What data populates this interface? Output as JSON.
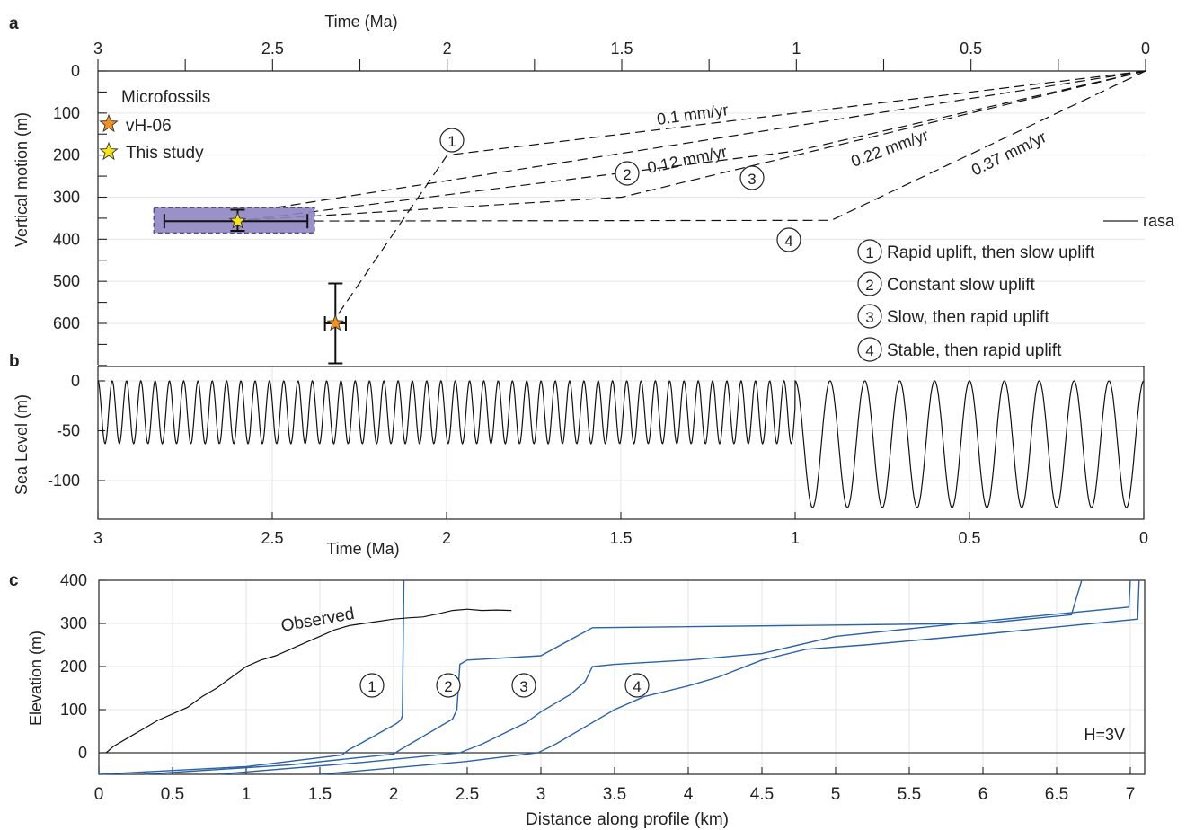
{
  "panels": {
    "a": {
      "label": "a",
      "xlabel": "Time (Ma)",
      "ylabel": "Vertical motion (m)",
      "xticks": [
        "3",
        "2.5",
        "2",
        "1.5",
        "1",
        "0.5",
        "0"
      ],
      "yticks": [
        "0",
        "100",
        "200",
        "300",
        "400",
        "500",
        "600"
      ],
      "legend_title": "Microfossils",
      "legend_items": [
        "vH-06",
        "This study"
      ],
      "rate_labels": [
        "0.1 mm/yr",
        "0.12 mm/yr",
        "0.22 mm/yr",
        "0.37 mm/yr"
      ],
      "rasa_label": "rasa",
      "scenarios": [
        {
          "num": "1",
          "text": "Rapid uplift, then slow uplift"
        },
        {
          "num": "2",
          "text": "Constant slow uplift"
        },
        {
          "num": "3",
          "text": "Slow, then rapid uplift"
        },
        {
          "num": "4",
          "text": "Stable, then rapid uplift"
        }
      ]
    },
    "b": {
      "label": "b",
      "xlabel": "Time (Ma)",
      "ylabel": "Sea Level (m)",
      "xticks": [
        "3",
        "2.5",
        "2",
        "1.5",
        "1",
        "0.5",
        "0"
      ],
      "yticks": [
        "0",
        "-50",
        "-100"
      ]
    },
    "c": {
      "label": "c",
      "xlabel": "Distance along profile (km)",
      "ylabel": "Elevation (m)",
      "xticks": [
        "0",
        "0.5",
        "1",
        "1.5",
        "2",
        "2.5",
        "3",
        "3.5",
        "4",
        "4.5",
        "5",
        "5.5",
        "6",
        "6.5",
        "7"
      ],
      "yticks": [
        "400",
        "300",
        "200",
        "100",
        "0"
      ],
      "observed_label": "Observed",
      "note": "H=3V",
      "model_labels": [
        "1",
        "2",
        "3",
        "4"
      ]
    }
  },
  "chart_data": [
    {
      "type": "line",
      "panel": "a",
      "x_axis": "Time (Ma)",
      "xlim": [
        3,
        0
      ],
      "ylim": [
        0,
        700
      ],
      "series": [
        {
          "x": [
            0,
            2.0,
            2.33
          ],
          "y": [
            0,
            200,
            600
          ]
        },
        {
          "x": [
            0,
            1.5,
            2.62
          ],
          "y": [
            0,
            300,
            357
          ]
        },
        {
          "x": [
            0,
            1.0,
            2.6
          ],
          "y": [
            0,
            190,
            357
          ]
        },
        {
          "x": [
            0,
            0.9,
            2.6
          ],
          "y": [
            0,
            355,
            357
          ]
        },
        {
          "x": [
            0,
            2.5
          ],
          "y": [
            0,
            326
          ]
        }
      ],
      "samples": [
        {
          "name": "This study",
          "age": 2.6,
          "age_range": [
            2.81,
            2.4
          ],
          "age_box": [
            2.84,
            2.38
          ],
          "elev": 357,
          "elev_range": [
            330,
            380
          ],
          "elev_box": [
            325,
            385
          ],
          "color": "#f5e51b"
        },
        {
          "name": "vH-06",
          "age": 2.32,
          "age_range": [
            2.29,
            2.35
          ],
          "age_box": [
            2.28,
            2.36
          ],
          "elev": 600,
          "elev_range": [
            505,
            695
          ],
          "elev_box": [
            495,
            700
          ],
          "color": "#f0921e"
        }
      ],
      "box_color": "#8f85c2"
    },
    {
      "type": "line",
      "panel": "b",
      "name": "Sea level",
      "xlim": [
        3,
        0
      ],
      "ylim": [
        -138,
        10
      ],
      "segments": [
        {
          "from": 3.0,
          "to": 1.0,
          "period_ma": 0.041,
          "min": -63,
          "max": 0
        },
        {
          "from": 1.0,
          "to": 0.0,
          "period_ma": 0.1,
          "min": -127,
          "max": 0
        }
      ]
    },
    {
      "type": "line",
      "panel": "c",
      "xlim": [
        0,
        7.1
      ],
      "ylim": [
        -50,
        400
      ],
      "line_color": "#2a62a8",
      "observed": {
        "x": [
          0.05,
          0.1,
          0.2,
          0.3,
          0.4,
          0.5,
          0.6,
          0.7,
          0.8,
          0.9,
          1.0,
          1.1,
          1.2,
          1.3,
          1.4,
          1.5,
          1.6,
          1.7,
          1.8,
          1.9,
          2.0,
          2.1,
          2.2,
          2.3,
          2.4,
          2.5,
          2.6,
          2.7,
          2.8
        ],
        "y": [
          0,
          15,
          35,
          55,
          75,
          90,
          105,
          130,
          150,
          175,
          200,
          215,
          225,
          240,
          255,
          270,
          285,
          295,
          300,
          305,
          310,
          313,
          315,
          322,
          330,
          333,
          330,
          331,
          330
        ]
      },
      "models": [
        {
          "name": "1",
          "x": [
            -0.1,
            1.0,
            1.65,
            1.7,
            1.74,
            1.78,
            1.82,
            1.86,
            1.9,
            1.94,
            1.98,
            2.02,
            2.05,
            2.06,
            2.07
          ],
          "y": [
            -50,
            -32,
            -5,
            8,
            15,
            22,
            30,
            37,
            45,
            53,
            60,
            68,
            76,
            86,
            400
          ]
        },
        {
          "name": "2",
          "x": [
            0.3,
            1.3,
            2.0,
            2.05,
            2.1,
            2.15,
            2.2,
            2.25,
            2.3,
            2.35,
            2.4,
            2.43,
            2.45,
            2.5,
            3.0,
            3.35,
            6.0,
            6.6,
            6.67
          ],
          "y": [
            -50,
            -28,
            -3,
            8,
            18,
            28,
            38,
            48,
            58,
            68,
            78,
            100,
            205,
            215,
            225,
            290,
            300,
            320,
            400
          ]
        },
        {
          "name": "3",
          "x": [
            0.8,
            1.8,
            2.45,
            2.6,
            2.75,
            2.9,
            3.0,
            3.1,
            3.2,
            3.3,
            3.35,
            3.5,
            4.0,
            4.5,
            5.0,
            6.0,
            6.99,
            7.0
          ],
          "y": [
            -50,
            -22,
            0,
            20,
            45,
            70,
            95,
            115,
            135,
            165,
            200,
            205,
            215,
            230,
            270,
            305,
            338,
            400
          ]
        },
        {
          "name": "4",
          "x": [
            1.5,
            2.5,
            2.98,
            3.1,
            3.3,
            3.5,
            3.7,
            4.0,
            4.2,
            4.5,
            4.8,
            5.2,
            6.0,
            7.05,
            7.06
          ],
          "y": [
            -50,
            -20,
            0,
            20,
            60,
            100,
            130,
            155,
            175,
            215,
            240,
            250,
            275,
            310,
            400
          ]
        }
      ]
    }
  ]
}
